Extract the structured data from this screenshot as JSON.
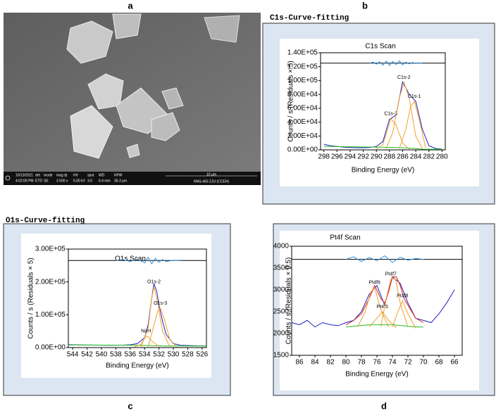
{
  "sem": {
    "panel_label": "a",
    "info": [
      [
        "10/13/2021",
        "4:02:00 PM"
      ],
      [
        "det",
        "ETD"
      ],
      [
        "mode",
        "SE"
      ],
      [
        "mag ⊞",
        "3 500 x"
      ],
      [
        "HV",
        "5.00 kV"
      ],
      [
        "spot",
        "3.0"
      ],
      [
        "WD",
        "6.4 mm"
      ],
      [
        "HFW",
        "36.3 µm"
      ]
    ],
    "scale_bar": "10 µm",
    "instrument": "NNS-450 ZJU (CCEH)"
  },
  "chart_data": [
    {
      "type": "line",
      "panel_label": "b",
      "header": "C1s-Curve-fitting",
      "title": "C1s Scan",
      "x_label": "Binding Energy (eV)",
      "y_label": "Counts / s  (Residuals × 5)",
      "xlim": [
        298.5,
        279.5
      ],
      "xticks": [
        298,
        296,
        294,
        292,
        290,
        288,
        286,
        284,
        282,
        280
      ],
      "ylim": [
        0,
        140000
      ],
      "yticks": [
        {
          "value": 0,
          "label": "0.00E+00"
        },
        {
          "value": 20000,
          "label": "2.00E+04"
        },
        {
          "value": 40000,
          "label": "4.00E+04"
        },
        {
          "value": 60000,
          "label": "6.00E+04"
        },
        {
          "value": 80000,
          "label": "8.00E+04"
        },
        {
          "value": 100000,
          "label": "1.00E+05"
        },
        {
          "value": 120000,
          "label": "1.20E+05"
        },
        {
          "value": 140000,
          "label": "1.40E+05"
        }
      ],
      "series": [
        {
          "color": "#2020c0",
          "x": [
            298,
            297,
            296,
            295,
            294,
            293,
            292,
            291,
            290,
            289,
            288,
            287,
            286,
            285,
            284,
            283,
            282,
            281,
            280
          ],
          "values": [
            8000,
            6000,
            5000,
            4000,
            3500,
            3000,
            3000,
            3500,
            5000,
            12000,
            44000,
            50000,
            98000,
            80000,
            70000,
            30000,
            6000,
            2000,
            1000
          ]
        },
        {
          "color": "#20c020",
          "x": [
            298,
            290,
            287,
            285,
            283,
            280
          ],
          "values": [
            5000,
            4000,
            3500,
            2500,
            1000,
            800
          ]
        },
        {
          "name": "C1s-3",
          "color": "#f0a030",
          "x": [
            290,
            289,
            288,
            287.8,
            287,
            286,
            285
          ],
          "values": [
            1000,
            8000,
            38000,
            45000,
            36000,
            10000,
            1000
          ]
        },
        {
          "name": "C1s-2",
          "color": "#f0a030",
          "x": [
            288.5,
            287.5,
            286.5,
            285.8,
            285,
            284,
            283
          ],
          "values": [
            2000,
            25000,
            75000,
            97000,
            75000,
            20000,
            2000
          ]
        },
        {
          "name": "C1s-1",
          "color": "#f0a030",
          "x": [
            286.5,
            285.5,
            284.8,
            284.2,
            283.5,
            282.5
          ],
          "values": [
            2000,
            30000,
            62000,
            70000,
            45000,
            3000
          ]
        },
        {
          "color": "#000000",
          "x": [
            298.5,
            279.5
          ],
          "values": [
            125000,
            125000
          ]
        },
        {
          "color": "#3090e0",
          "x": [
            291,
            290.5,
            290,
            289.5,
            289,
            288.5,
            288,
            287.5,
            287,
            286.5,
            286,
            285.5,
            285,
            284.5,
            284,
            283.5,
            283
          ],
          "values": [
            125000,
            126500,
            123500,
            127000,
            122000,
            128000,
            121500,
            127500,
            123000,
            128500,
            122500,
            126500,
            124000,
            126000,
            124500,
            125500,
            125000
          ]
        }
      ]
    },
    {
      "type": "line",
      "panel_label": "c",
      "header": "O1s-Curve-fitting",
      "title": "O1s Scan",
      "x_label": "Binding Energy (eV)",
      "y_label": "Counts / s  (Residuals × 5)",
      "xlim": [
        544.6,
        525.4
      ],
      "xticks": [
        544,
        542,
        540,
        538,
        536,
        534,
        532,
        530,
        528,
        526
      ],
      "ylim": [
        0,
        300000
      ],
      "yticks": [
        {
          "value": 0,
          "label": "0.00E+00"
        },
        {
          "value": 100000,
          "label": "1.00E+05"
        },
        {
          "value": 200000,
          "label": "2.00E+05"
        },
        {
          "value": 300000,
          "label": "3.00E+05"
        }
      ],
      "series": [
        {
          "color": "#2020c0",
          "x": [
            544.6,
            543,
            541,
            539,
            537,
            536,
            535,
            534,
            533.5,
            533,
            532.7,
            532.3,
            532,
            531.5,
            531,
            530,
            529,
            527,
            525.4
          ],
          "values": [
            9000,
            8000,
            7500,
            7000,
            7500,
            8500,
            12000,
            30000,
            70000,
            150000,
            195000,
            170000,
            130000,
            80000,
            40000,
            12000,
            7000,
            5500,
            5000
          ]
        },
        {
          "color": "#20c020",
          "x": [
            544.6,
            535,
            533,
            531,
            525.4
          ],
          "values": [
            8000,
            7000,
            6000,
            5000,
            5000
          ]
        },
        {
          "name": "NaH",
          "color": "#f0a030",
          "x": [
            535.5,
            534.5,
            534,
            533.8,
            533.5,
            533,
            532
          ],
          "values": [
            1000,
            10000,
            28000,
            35000,
            33000,
            20000,
            3000
          ]
        },
        {
          "name": "O1s-2",
          "color": "#f0a030",
          "x": [
            534.5,
            533.5,
            533,
            532.7,
            532.3,
            531.5,
            530.5
          ],
          "values": [
            2000,
            60000,
            150000,
            185000,
            150000,
            50000,
            2000
          ]
        },
        {
          "name": "O1s-3",
          "color": "#f0a030",
          "x": [
            533.5,
            532.8,
            532.2,
            531.8,
            531.3,
            530.5,
            529.5
          ],
          "values": [
            3000,
            60000,
            110000,
            120000,
            90000,
            25000,
            2000
          ]
        },
        {
          "color": "#000000",
          "x": [
            544.6,
            525.4
          ],
          "values": [
            265000,
            265000
          ]
        },
        {
          "color": "#3090e0",
          "x": [
            538,
            537,
            536,
            535,
            534,
            533.5,
            533,
            532.5,
            532,
            531.5,
            531,
            530,
            529
          ],
          "values": [
            265000,
            268000,
            262000,
            270000,
            258000,
            275000,
            255000,
            272000,
            260000,
            268000,
            262000,
            266000,
            265000
          ]
        }
      ]
    },
    {
      "type": "line",
      "panel_label": "d",
      "title": "Pt4f Scan",
      "x_label": "Binding Energy (eV)",
      "y_label": "Counts / s  (Residuals × 0.5)",
      "xlim": [
        87,
        65
      ],
      "xticks": [
        86,
        84,
        82,
        80,
        78,
        76,
        74,
        72,
        70,
        68,
        66
      ],
      "ylim": [
        1500,
        4000
      ],
      "yticks": [
        1500,
        2000,
        2500,
        3000,
        3500,
        4000
      ],
      "series": [
        {
          "color": "#2020c0",
          "x": [
            87,
            86,
            85,
            84,
            83,
            82,
            81,
            80,
            79,
            78,
            77,
            76,
            75,
            74,
            73,
            72,
            71,
            70,
            69,
            68,
            67,
            66
          ],
          "values": [
            2250,
            2200,
            2300,
            2150,
            2250,
            2200,
            2180,
            2250,
            2300,
            2500,
            2900,
            3100,
            2650,
            3300,
            3150,
            2700,
            2350,
            2300,
            2250,
            2450,
            2700,
            3000
          ]
        },
        {
          "color": "#e02020",
          "x": [
            80,
            79,
            78,
            77,
            76.3,
            75.5,
            75,
            74.5,
            74,
            73.5,
            73,
            72.5,
            72,
            71,
            70
          ],
          "values": [
            2200,
            2300,
            2450,
            2800,
            3100,
            2800,
            2700,
            2950,
            3300,
            3300,
            3100,
            2800,
            2650,
            2350,
            2250
          ]
        },
        {
          "color": "#20c020",
          "x": [
            80,
            77,
            74,
            71,
            70
          ],
          "values": [
            2150,
            2200,
            2200,
            2150,
            2150
          ]
        },
        {
          "name": "Pt4f6",
          "color": "#f0a030",
          "x": [
            78.5,
            77.5,
            76.8,
            76.3,
            75.5,
            74.5
          ],
          "values": [
            2150,
            2500,
            2950,
            3050,
            2550,
            2150
          ]
        },
        {
          "name": "Pt4f5",
          "color": "#f0a030",
          "x": [
            77,
            76,
            75.3,
            74.5,
            73.5
          ],
          "values": [
            2150,
            2350,
            2500,
            2300,
            2130
          ]
        },
        {
          "name": "Pt4f7",
          "color": "#f0a030",
          "x": [
            75.5,
            74.8,
            74.2,
            73.6,
            73,
            72
          ],
          "values": [
            2150,
            2800,
            3250,
            3250,
            2700,
            2150
          ]
        },
        {
          "name": "Pt4f8",
          "color": "#f0a030",
          "x": [
            74,
            73.3,
            72.7,
            72,
            71
          ],
          "values": [
            2150,
            2500,
            2750,
            2450,
            2120
          ]
        },
        {
          "color": "#000000",
          "x": [
            87,
            65
          ],
          "values": [
            3700,
            3700
          ]
        },
        {
          "color": "#3090e0",
          "x": [
            80,
            79,
            78,
            77,
            76,
            75,
            74,
            73,
            72,
            71,
            70
          ],
          "values": [
            3700,
            3760,
            3650,
            3740,
            3670,
            3780,
            3630,
            3750,
            3680,
            3720,
            3700
          ]
        }
      ]
    }
  ]
}
